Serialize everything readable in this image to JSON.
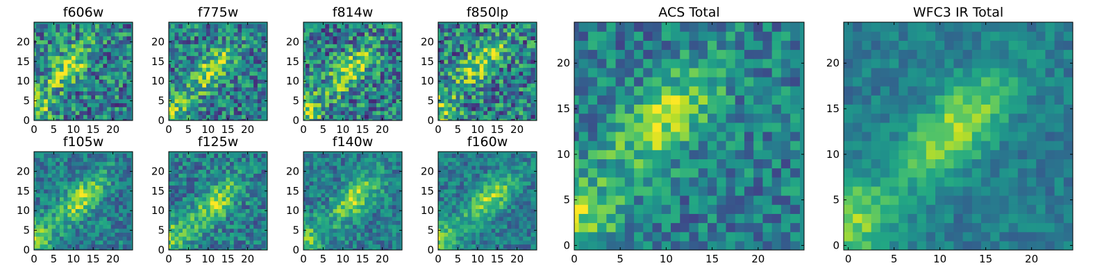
{
  "figure": {
    "colormap": "viridis"
  },
  "chart_data": [
    {
      "type": "heatmap",
      "title": "f606w",
      "xlim": [
        0,
        25
      ],
      "ylim": [
        0,
        25
      ],
      "xticks": [
        0,
        5,
        10,
        15,
        20
      ],
      "yticks": [
        0,
        5,
        10,
        15,
        20
      ],
      "grid": false,
      "peak": {
        "x": 9,
        "y": 14
      },
      "noise": 0.32,
      "seed": 11
    },
    {
      "type": "heatmap",
      "title": "f775w",
      "xlim": [
        0,
        25
      ],
      "ylim": [
        0,
        25
      ],
      "xticks": [
        0,
        5,
        10,
        15,
        20
      ],
      "yticks": [
        0,
        5,
        10,
        15,
        20
      ],
      "grid": false,
      "peak": {
        "x": 11,
        "y": 13
      },
      "noise": 0.3,
      "seed": 23
    },
    {
      "type": "heatmap",
      "title": "f814w",
      "xlim": [
        0,
        25
      ],
      "ylim": [
        0,
        25
      ],
      "xticks": [
        0,
        5,
        10,
        15,
        20
      ],
      "yticks": [
        0,
        5,
        10,
        15,
        20
      ],
      "grid": false,
      "peak": {
        "x": 12,
        "y": 13
      },
      "noise": 0.33,
      "seed": 37
    },
    {
      "type": "heatmap",
      "title": "f850lp",
      "xlim": [
        0,
        25
      ],
      "ylim": [
        0,
        25
      ],
      "xticks": [
        0,
        5,
        10,
        15,
        20
      ],
      "yticks": [
        0,
        5,
        10,
        15,
        20
      ],
      "grid": false,
      "peak": {
        "x": 11,
        "y": 15
      },
      "noise": 0.34,
      "seed": 41
    },
    {
      "type": "heatmap",
      "title": "f105w",
      "xlim": [
        0,
        25
      ],
      "ylim": [
        0,
        25
      ],
      "xticks": [
        0,
        5,
        10,
        15,
        20
      ],
      "yticks": [
        0,
        5,
        10,
        15,
        20
      ],
      "grid": false,
      "peak": {
        "x": 12,
        "y": 13
      },
      "noise": 0.2,
      "seed": 53
    },
    {
      "type": "heatmap",
      "title": "f125w",
      "xlim": [
        0,
        25
      ],
      "ylim": [
        0,
        25
      ],
      "xticks": [
        0,
        5,
        10,
        15,
        20
      ],
      "yticks": [
        0,
        5,
        10,
        15,
        20
      ],
      "grid": false,
      "peak": {
        "x": 12,
        "y": 12
      },
      "noise": 0.22,
      "seed": 67
    },
    {
      "type": "heatmap",
      "title": "f140w",
      "xlim": [
        0,
        25
      ],
      "ylim": [
        0,
        25
      ],
      "xticks": [
        0,
        5,
        10,
        15,
        20
      ],
      "yticks": [
        0,
        5,
        10,
        15,
        20
      ],
      "grid": false,
      "peak": {
        "x": 13,
        "y": 13
      },
      "noise": 0.2,
      "seed": 79
    },
    {
      "type": "heatmap",
      "title": "f160w",
      "xlim": [
        0,
        25
      ],
      "ylim": [
        0,
        25
      ],
      "xticks": [
        0,
        5,
        10,
        15,
        20
      ],
      "yticks": [
        0,
        5,
        10,
        15,
        20
      ],
      "grid": false,
      "peak": {
        "x": 13,
        "y": 13
      },
      "noise": 0.18,
      "seed": 83
    },
    {
      "type": "heatmap",
      "title": "ACS Total",
      "xlim": [
        0,
        25
      ],
      "ylim": [
        -0.5,
        24.5
      ],
      "xticks": [
        0,
        5,
        10,
        15,
        20
      ],
      "yticks": [
        0,
        5,
        10,
        15,
        20
      ],
      "grid": false,
      "peak": {
        "x": 10,
        "y": 14
      },
      "noise": 0.22,
      "seed": 97
    },
    {
      "type": "heatmap",
      "title": "WFC3 IR Total",
      "xlim": [
        -0.5,
        24.5
      ],
      "ylim": [
        -0.5,
        24.5
      ],
      "xticks": [
        0,
        5,
        10,
        15,
        20
      ],
      "yticks": [
        0,
        5,
        10,
        15,
        20
      ],
      "grid": false,
      "peak": {
        "x": 12,
        "y": 13
      },
      "noise": 0.12,
      "seed": 101
    }
  ]
}
